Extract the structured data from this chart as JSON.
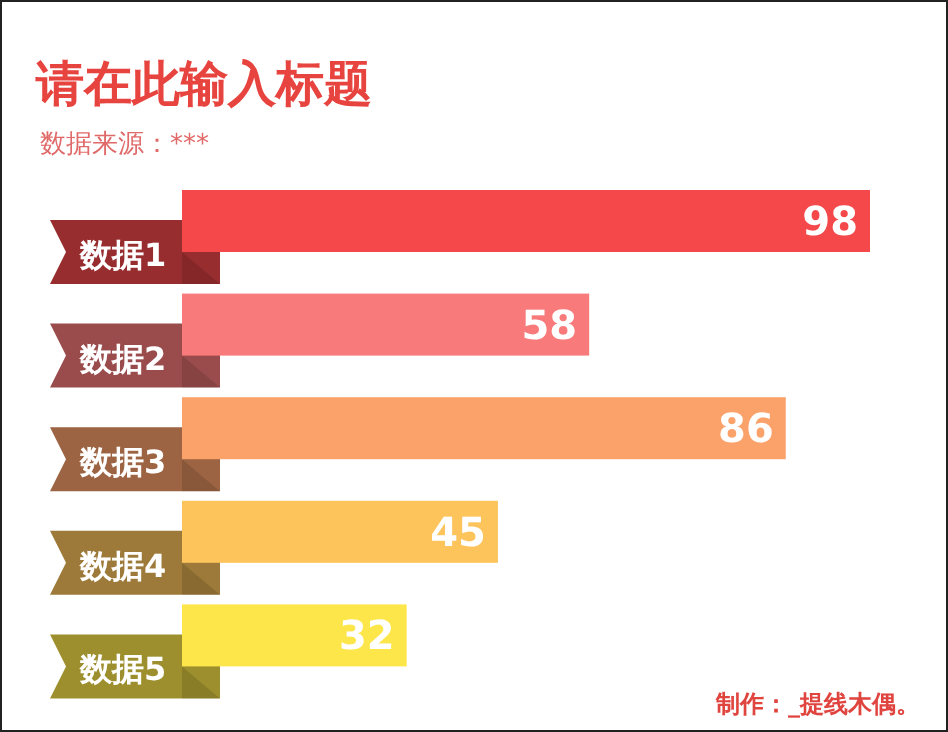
{
  "chart_data": {
    "type": "bar",
    "orientation": "horizontal",
    "title": "请在此输入标题",
    "subtitle": "数据来源：***",
    "categories": [
      "数据1",
      "数据2",
      "数据3",
      "数据4",
      "数据5"
    ],
    "values": [
      98,
      58,
      86,
      45,
      32
    ],
    "colors": [
      "#f5484b",
      "#f87a7a",
      "#fba26a",
      "#fdc45c",
      "#fde64a"
    ],
    "data_labels": true,
    "annotations": [
      "制作：_提线木偶。"
    ]
  }
}
